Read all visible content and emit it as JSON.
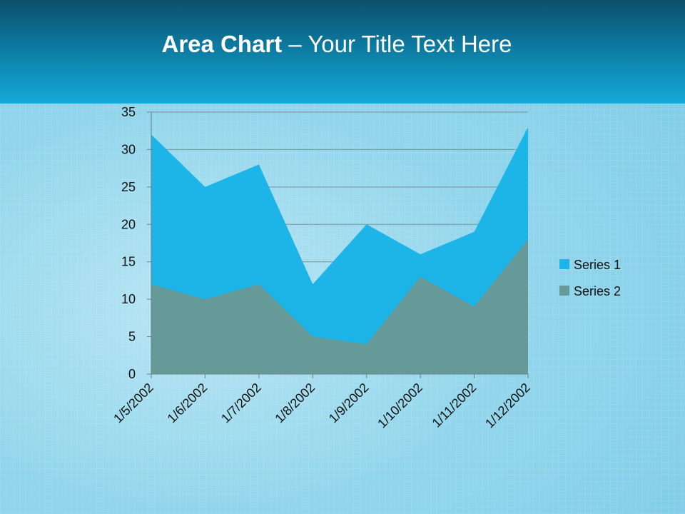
{
  "slide": {
    "title_bold": "Area Chart",
    "title_rest": " – Your Title Text Here"
  },
  "colors": {
    "series1": "#1db4e8",
    "series2": "#669a98",
    "header_top": "#0b4f6c",
    "header_bottom": "#14a9da",
    "gridline": "#7d8f97"
  },
  "chart_data": {
    "type": "area",
    "stacked": false,
    "x": [
      "1/5/2002",
      "1/6/2002",
      "1/7/2002",
      "1/8/2002",
      "1/9/2002",
      "1/10/2002",
      "1/11/2002",
      "1/12/2002"
    ],
    "series": [
      {
        "name": "Series 1",
        "values": [
          32,
          25,
          28,
          12,
          20,
          16,
          19,
          33
        ]
      },
      {
        "name": "Series 2",
        "values": [
          12,
          10,
          12,
          5,
          4,
          13,
          9,
          18
        ]
      }
    ],
    "ylim": [
      0,
      35
    ],
    "yticks": [
      0,
      5,
      10,
      15,
      20,
      25,
      30,
      35
    ],
    "grid": true,
    "legend": "right"
  }
}
